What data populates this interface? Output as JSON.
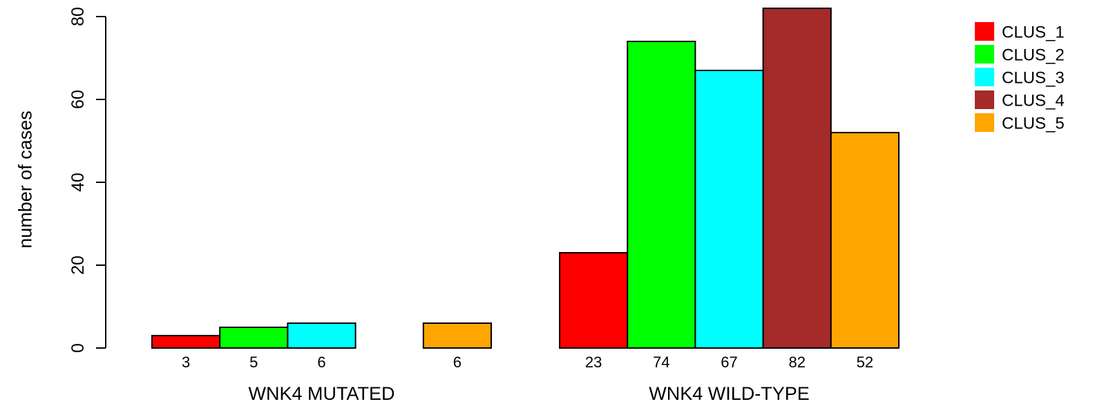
{
  "chart_data": {
    "type": "bar",
    "ylabel": "number of cases",
    "ylim": [
      0,
      80
    ],
    "yticks": [
      "0",
      "20",
      "40",
      "60",
      "80"
    ],
    "groups": [
      "WNK4 MUTATED",
      "WNK4 WILD-TYPE"
    ],
    "series": [
      {
        "name": "CLUS_1",
        "color": "#ff0000",
        "values": [
          3,
          23
        ],
        "labels": [
          "3",
          "23"
        ]
      },
      {
        "name": "CLUS_2",
        "color": "#00ff00",
        "values": [
          5,
          74
        ],
        "labels": [
          "5",
          "74"
        ]
      },
      {
        "name": "CLUS_3",
        "color": "#00ffff",
        "values": [
          6,
          67
        ],
        "labels": [
          "6",
          "67"
        ]
      },
      {
        "name": "CLUS_4",
        "color": "#a52a2a",
        "values": [
          0,
          82
        ],
        "labels": [
          "",
          "82"
        ]
      },
      {
        "name": "CLUS_5",
        "color": "#ffa500",
        "values": [
          6,
          52
        ],
        "labels": [
          "6",
          "52"
        ]
      }
    ],
    "legend_position": "top-right",
    "grid": false
  }
}
